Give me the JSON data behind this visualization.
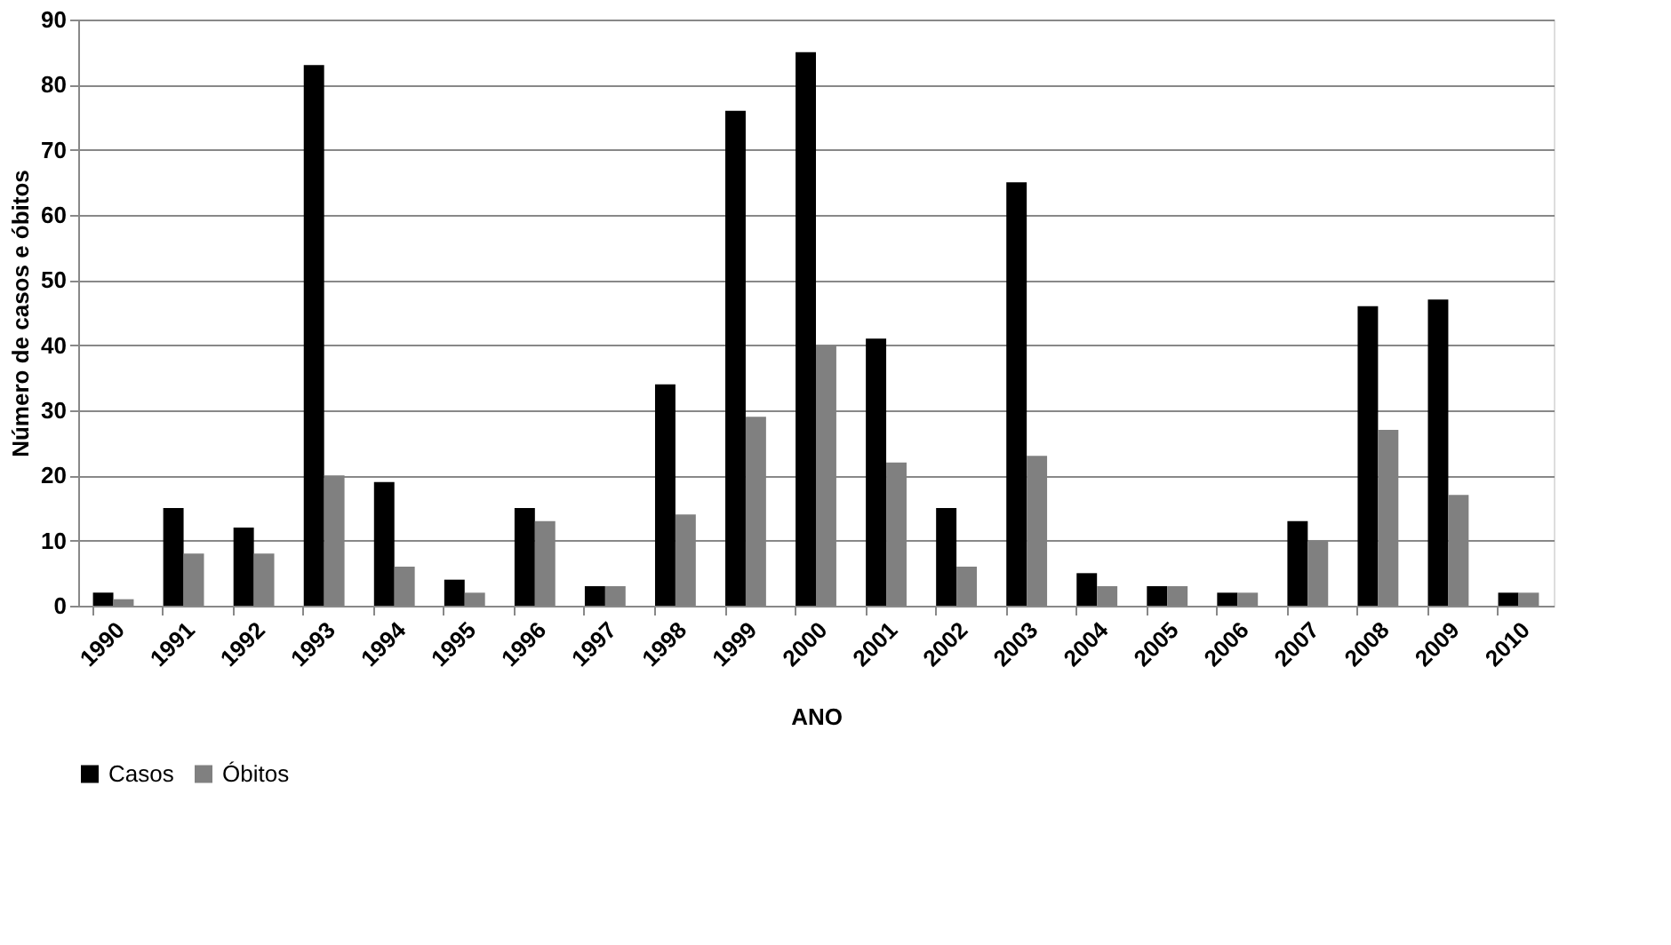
{
  "chart_data": {
    "type": "bar",
    "xlabel": "ANO",
    "ylabel": "Número de casos e óbitos",
    "categories": [
      "1990",
      "1991",
      "1992",
      "1993",
      "1994",
      "1995",
      "1996",
      "1997",
      "1998",
      "1999",
      "2000",
      "2001",
      "2002",
      "2003",
      "2004",
      "2005",
      "2006",
      "2007",
      "2008",
      "2009",
      "2010"
    ],
    "series": [
      {
        "name": "Casos",
        "color": "#000000",
        "values": [
          2,
          15,
          12,
          83,
          19,
          4,
          15,
          3,
          34,
          76,
          85,
          41,
          15,
          65,
          5,
          3,
          2,
          13,
          46,
          47,
          2
        ]
      },
      {
        "name": "Óbitos",
        "color": "#808080",
        "values": [
          1,
          8,
          8,
          20,
          6,
          2,
          13,
          3,
          14,
          29,
          40,
          22,
          6,
          23,
          3,
          3,
          2,
          10,
          27,
          17,
          2
        ]
      }
    ],
    "ylim": [
      0,
      90
    ],
    "yticks": [
      0,
      10,
      20,
      30,
      40,
      50,
      60,
      70,
      80,
      90
    ],
    "grid": "y",
    "legend": "bottom"
  }
}
